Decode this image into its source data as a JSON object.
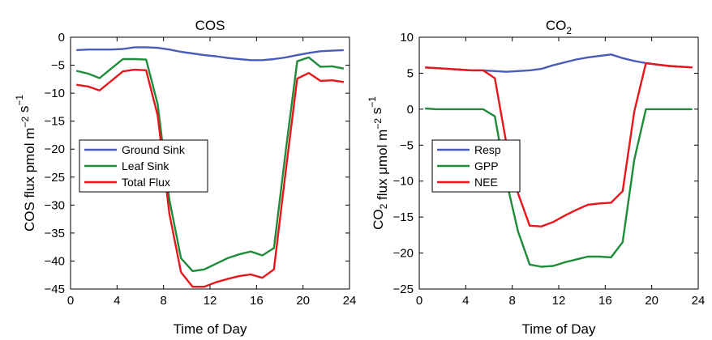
{
  "chart_data": [
    {
      "type": "line",
      "title": "COS",
      "xlabel": "Time of Day",
      "ylabel": "COS flux pmol m⁻² s⁻¹",
      "xlim": [
        0,
        24
      ],
      "ylim": [
        -45,
        0
      ],
      "xticks": [
        0,
        4,
        8,
        12,
        16,
        20,
        24
      ],
      "yticks": [
        0,
        -5,
        -10,
        -15,
        -20,
        -25,
        -30,
        -35,
        -40,
        -45
      ],
      "grid": false,
      "legend_position": "left-center",
      "series": [
        {
          "name": "Ground Sink",
          "color": "#4A5CB8",
          "x": [
            0.5,
            1.5,
            2.5,
            3.5,
            4.5,
            5.5,
            6.5,
            7.5,
            8.5,
            9.5,
            10.5,
            11.5,
            12.5,
            13.5,
            14.5,
            15.5,
            16.5,
            17.5,
            18.5,
            19.5,
            20.5,
            21.5,
            22.5,
            23.5
          ],
          "y": [
            -2.3,
            -2.2,
            -2.2,
            -2.2,
            -2.1,
            -1.8,
            -1.8,
            -1.9,
            -2.2,
            -2.6,
            -2.9,
            -3.2,
            -3.4,
            -3.7,
            -3.9,
            -4.1,
            -4.1,
            -3.9,
            -3.6,
            -3.2,
            -2.8,
            -2.5,
            -2.4,
            -2.3
          ]
        },
        {
          "name": "Leaf Sink",
          "color": "#1E8C3A",
          "x": [
            0.5,
            1.5,
            2.5,
            3.5,
            4.5,
            5.5,
            6.5,
            7.5,
            8.5,
            9.5,
            10.5,
            11.5,
            12.5,
            13.5,
            14.5,
            15.5,
            16.5,
            17.5,
            18.5,
            19.5,
            20.5,
            21.5,
            22.5,
            23.5
          ],
          "y": [
            -6.0,
            -6.5,
            -7.3,
            -5.6,
            -3.9,
            -3.9,
            -4.0,
            -12.0,
            -29.0,
            -39.5,
            -41.8,
            -41.5,
            -40.5,
            -39.5,
            -38.8,
            -38.3,
            -39.0,
            -37.7,
            -20.5,
            -4.3,
            -3.6,
            -5.3,
            -5.2,
            -5.6
          ]
        },
        {
          "name": "Total Flux",
          "color": "#E8161B",
          "x": [
            0.5,
            1.5,
            2.5,
            3.5,
            4.5,
            5.5,
            6.5,
            7.5,
            8.5,
            9.5,
            10.5,
            11.5,
            12.5,
            13.5,
            14.5,
            15.5,
            16.5,
            17.5,
            18.5,
            19.5,
            20.5,
            21.5,
            22.5,
            23.5
          ],
          "y": [
            -8.5,
            -8.8,
            -9.5,
            -7.8,
            -6.1,
            -5.8,
            -5.9,
            -14.0,
            -31.5,
            -42.0,
            -44.6,
            -44.6,
            -43.8,
            -43.2,
            -42.7,
            -42.4,
            -43.0,
            -41.5,
            -24.1,
            -7.4,
            -6.4,
            -7.8,
            -7.7,
            -8.0
          ]
        }
      ]
    },
    {
      "type": "line",
      "title": "CO",
      "title_sub": "2",
      "xlabel": "Time of Day",
      "ylabel": "CO₂ flux μmol m⁻² s⁻¹",
      "xlim": [
        0,
        24
      ],
      "ylim": [
        -25,
        10
      ],
      "xticks": [
        0,
        4,
        8,
        12,
        16,
        20,
        24
      ],
      "yticks": [
        10,
        5,
        0,
        -5,
        -10,
        -15,
        -20,
        -25
      ],
      "grid": false,
      "legend_position": "left-center",
      "series": [
        {
          "name": "Resp",
          "color": "#4A5CB8",
          "x": [
            0.5,
            1.5,
            2.5,
            3.5,
            4.5,
            5.5,
            6.5,
            7.5,
            8.5,
            9.5,
            10.5,
            11.5,
            12.5,
            13.5,
            14.5,
            15.5,
            16.5,
            17.5,
            18.5,
            19.5,
            20.5,
            21.5,
            22.5,
            23.5
          ],
          "y": [
            5.8,
            5.7,
            5.6,
            5.5,
            5.4,
            5.4,
            5.3,
            5.2,
            5.3,
            5.4,
            5.6,
            6.1,
            6.5,
            6.9,
            7.2,
            7.4,
            7.6,
            7.1,
            6.7,
            6.4,
            6.2,
            6.0,
            5.9,
            5.8
          ]
        },
        {
          "name": "GPP",
          "color": "#1E8C3A",
          "x": [
            0.5,
            1.5,
            2.5,
            3.5,
            4.5,
            5.5,
            6.5,
            7.5,
            8.5,
            9.5,
            10.5,
            11.5,
            12.5,
            13.5,
            14.5,
            15.5,
            16.5,
            17.5,
            18.5,
            19.5,
            20.5,
            21.5,
            22.5,
            23.5
          ],
          "y": [
            0.1,
            0.0,
            0.0,
            0.0,
            0.0,
            0.0,
            -1.0,
            -10.0,
            -17.0,
            -21.6,
            -21.9,
            -21.8,
            -21.3,
            -20.9,
            -20.5,
            -20.5,
            -20.6,
            -18.5,
            -7.0,
            0.0,
            0.0,
            0.0,
            0.0,
            0.0
          ]
        },
        {
          "name": "NEE",
          "color": "#E8161B",
          "x": [
            0.5,
            1.5,
            2.5,
            3.5,
            4.5,
            5.5,
            6.5,
            7.5,
            8.5,
            9.5,
            10.5,
            11.5,
            12.5,
            13.5,
            14.5,
            15.5,
            16.5,
            17.5,
            18.5,
            19.5,
            20.5,
            21.5,
            22.5,
            23.5
          ],
          "y": [
            5.8,
            5.7,
            5.6,
            5.5,
            5.4,
            5.4,
            4.3,
            -4.8,
            -11.7,
            -16.2,
            -16.3,
            -15.7,
            -14.8,
            -14.0,
            -13.3,
            -13.1,
            -13.0,
            -11.4,
            -0.3,
            6.4,
            6.2,
            6.0,
            5.9,
            5.8
          ]
        }
      ]
    }
  ]
}
